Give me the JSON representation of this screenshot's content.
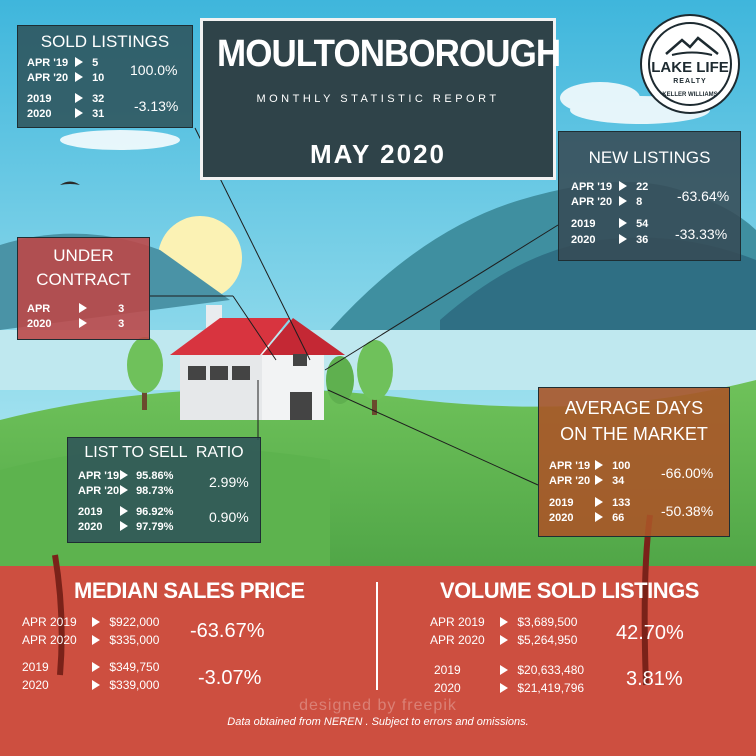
{
  "header": {
    "city": "MOULTONBOROUGH",
    "subtitle": "MONTHLY STATISTIC REPORT",
    "month": "MAY 2020"
  },
  "logo": {
    "line1": "LAKE LIFE",
    "line2": "REALTY",
    "line3": "KELLER WILLIAMS"
  },
  "sold_listings": {
    "title": "SOLD LISTINGS",
    "rows": [
      {
        "label": "APR '19",
        "value": "5"
      },
      {
        "label": "APR '20",
        "value": "10"
      },
      {
        "label": "2019",
        "value": "32"
      },
      {
        "label": "2020",
        "value": "31"
      }
    ],
    "pct_month": "100.0%",
    "pct_year": "-3.13%"
  },
  "new_listings": {
    "title": "NEW LISTINGS",
    "rows": [
      {
        "label": "APR '19",
        "value": "22"
      },
      {
        "label": "APR '20",
        "value": "8"
      },
      {
        "label": "2019",
        "value": "54"
      },
      {
        "label": "2020",
        "value": "36"
      }
    ],
    "pct_month": "-63.64%",
    "pct_year": "-33.33%"
  },
  "under_contract": {
    "title_line1": "UNDER",
    "title_line2": "CONTRACT",
    "rows": [
      {
        "label": "APR",
        "value": "3"
      },
      {
        "label": "2020",
        "value": "3"
      }
    ]
  },
  "list_to_sell": {
    "title": "LIST TO SELL  RATIO",
    "rows": [
      {
        "label": "APR '19",
        "value": "95.86%"
      },
      {
        "label": "APR '20",
        "value": "98.73%"
      },
      {
        "label": "2019",
        "value": "96.92%"
      },
      {
        "label": "2020",
        "value": "97.79%"
      }
    ],
    "pct_month": "2.99%",
    "pct_year": "0.90%"
  },
  "avg_days": {
    "title_line1": "AVERAGE DAYS",
    "title_line2": "ON THE MARKET",
    "rows": [
      {
        "label": "APR '19",
        "value": "100"
      },
      {
        "label": "APR '20",
        "value": "34"
      },
      {
        "label": "2019",
        "value": "133"
      },
      {
        "label": "2020",
        "value": "66"
      }
    ],
    "pct_month": "-66.00%",
    "pct_year": "-50.38%"
  },
  "median_price": {
    "title": "MEDIAN SALES PRICE",
    "rows": [
      {
        "label": "APR 2019",
        "value": "$922,000"
      },
      {
        "label": "APR 2020",
        "value": "$335,000"
      },
      {
        "label": "2019",
        "value": "$349,750"
      },
      {
        "label": "2020",
        "value": "$339,000"
      }
    ],
    "pct_month": "-63.67%",
    "pct_year": "-3.07%"
  },
  "volume_sold": {
    "title": "VOLUME SOLD LISTINGS",
    "rows": [
      {
        "label": "APR 2019",
        "value": "$3,689,500"
      },
      {
        "label": "APR 2020",
        "value": "$5,264,950"
      },
      {
        "label": "2019",
        "value": "$20,633,480"
      },
      {
        "label": "2020",
        "value": "$21,419,796"
      }
    ],
    "pct_month": "42.70%",
    "pct_year": "3.81%"
  },
  "footer": {
    "watermark": "designed by freepik",
    "disclaimer": "Data obtained from NEREN . Subject to errors and omissions."
  }
}
